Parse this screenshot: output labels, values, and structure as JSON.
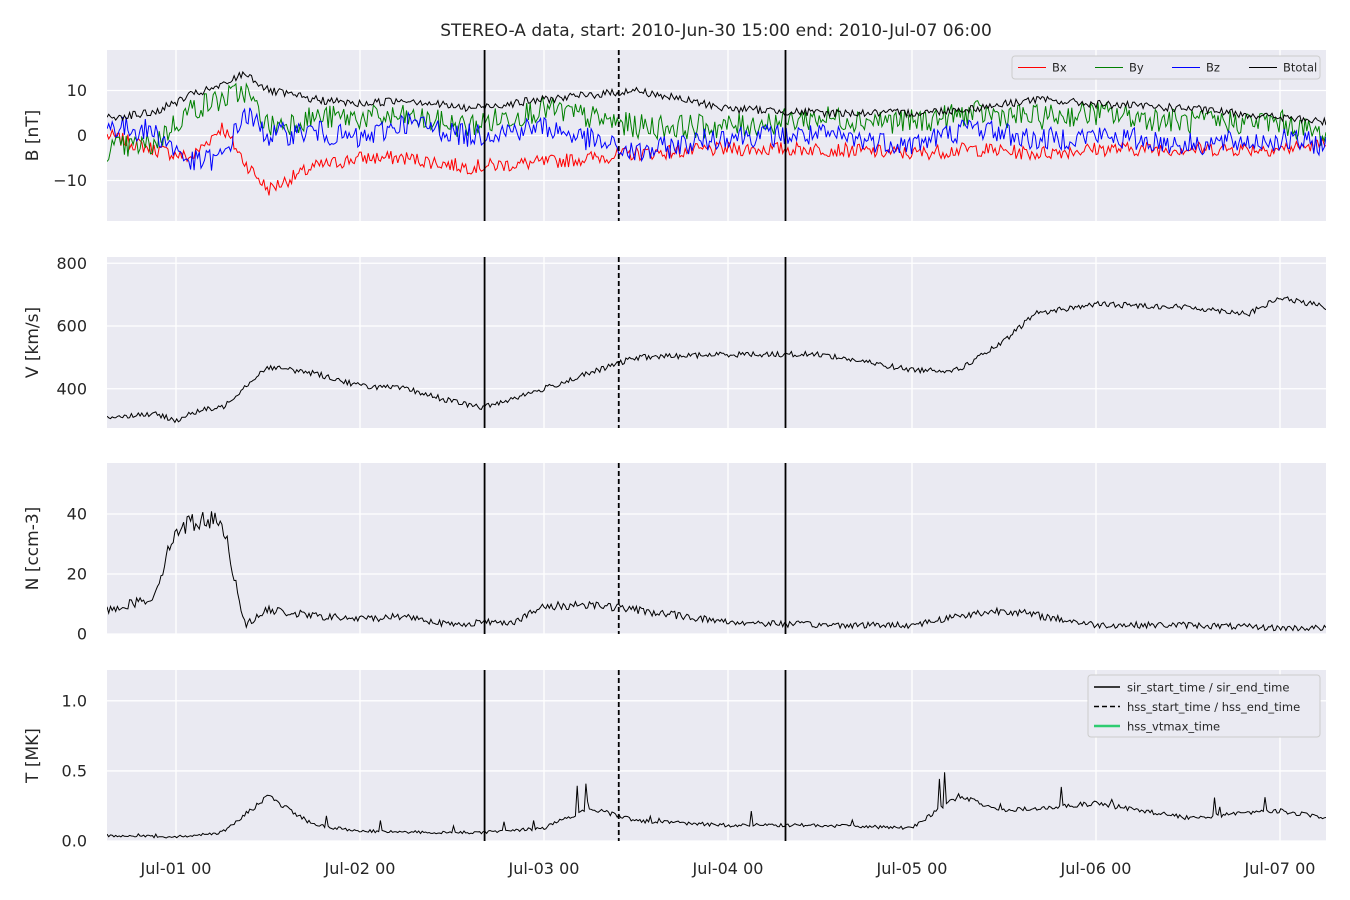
{
  "title": "STEREO-A data, start: 2010-Jun-30 15:00  end: 2010-Jul-07 06:00",
  "chart_data": [
    {
      "type": "line",
      "ylabel": "B [nT]",
      "xlim": [
        "2010-06-30 15:00",
        "2010-07-07 06:00"
      ],
      "ylim": [
        -19,
        19
      ],
      "yticks": [
        {
          "value": 10,
          "label": "10"
        },
        {
          "value": 0,
          "label": "0"
        },
        {
          "value": -10,
          "label": "−10"
        }
      ],
      "legend": {
        "placement": "top-right",
        "layout": "4 columns"
      },
      "grid": true,
      "series": [
        {
          "name": "Bx",
          "color": "#ff0000",
          "x": [
            "2010-06-30 15:00",
            "2010-06-30 21:00",
            "2010-07-01 02:00",
            "2010-07-01 06:00",
            "2010-07-01 09:00",
            "2010-07-01 12:00",
            "2010-07-01 18:00",
            "2010-07-02 00:00",
            "2010-07-02 06:00",
            "2010-07-02 14:00",
            "2010-07-03 00:00",
            "2010-07-03 12:00",
            "2010-07-04 00:00",
            "2010-07-04 12:00",
            "2010-07-05 00:00",
            "2010-07-05 08:00",
            "2010-07-05 16:00",
            "2010-07-06 00:00",
            "2010-07-06 12:00",
            "2010-07-07 00:00",
            "2010-07-07 06:00"
          ],
          "values": [
            0,
            -3,
            -5,
            2,
            -6,
            -12,
            -7,
            -5,
            -5,
            -7,
            -6,
            -4,
            -3,
            -3,
            -4,
            -3,
            -4,
            -3,
            -3,
            -3,
            -2
          ]
        },
        {
          "name": "By",
          "color": "#008000",
          "x": [
            "2010-06-30 15:00",
            "2010-06-30 21:00",
            "2010-07-01 02:00",
            "2010-07-01 06:00",
            "2010-07-01 09:00",
            "2010-07-01 12:00",
            "2010-07-01 18:00",
            "2010-07-02 00:00",
            "2010-07-02 06:00",
            "2010-07-02 14:00",
            "2010-07-03 00:00",
            "2010-07-03 12:00",
            "2010-07-04 00:00",
            "2010-07-04 12:00",
            "2010-07-05 00:00",
            "2010-07-05 08:00",
            "2010-07-05 16:00",
            "2010-07-06 00:00",
            "2010-07-06 12:00",
            "2010-07-07 00:00",
            "2010-07-07 06:00"
          ],
          "values": [
            -3,
            -2,
            6,
            8,
            10,
            2,
            4,
            4,
            4,
            2,
            6,
            2,
            2,
            4,
            3,
            5,
            4,
            5,
            3,
            3,
            0
          ]
        },
        {
          "name": "Bz",
          "color": "#0000ff",
          "x": [
            "2010-06-30 15:00",
            "2010-06-30 21:00",
            "2010-07-01 02:00",
            "2010-07-01 06:00",
            "2010-07-01 09:00",
            "2010-07-01 12:00",
            "2010-07-01 18:00",
            "2010-07-02 00:00",
            "2010-07-02 06:00",
            "2010-07-02 14:00",
            "2010-07-03 00:00",
            "2010-07-03 12:00",
            "2010-07-04 00:00",
            "2010-07-04 12:00",
            "2010-07-05 00:00",
            "2010-07-05 08:00",
            "2010-07-05 16:00",
            "2010-07-06 00:00",
            "2010-07-06 12:00",
            "2010-07-07 00:00",
            "2010-07-07 06:00"
          ],
          "values": [
            2,
            1,
            -6,
            -5,
            5,
            0,
            1,
            -1,
            3,
            0,
            2,
            -4,
            0,
            0,
            -2,
            2,
            -1,
            0,
            -2,
            -1,
            -2
          ]
        },
        {
          "name": "Btotal",
          "color": "#000000",
          "x": [
            "2010-06-30 15:00",
            "2010-06-30 21:00",
            "2010-07-01 02:00",
            "2010-07-01 06:00",
            "2010-07-01 09:00",
            "2010-07-01 12:00",
            "2010-07-01 18:00",
            "2010-07-02 00:00",
            "2010-07-02 06:00",
            "2010-07-02 14:00",
            "2010-07-03 00:00",
            "2010-07-03 12:00",
            "2010-07-04 00:00",
            "2010-07-04 12:00",
            "2010-07-05 00:00",
            "2010-07-05 08:00",
            "2010-07-05 16:00",
            "2010-07-06 00:00",
            "2010-07-06 12:00",
            "2010-07-07 00:00",
            "2010-07-07 06:00"
          ],
          "values": [
            4,
            5,
            9,
            11,
            14,
            10,
            8,
            7,
            8,
            6,
            8,
            10,
            6,
            5,
            5,
            6,
            8,
            7,
            6,
            4,
            3
          ]
        }
      ]
    },
    {
      "type": "line",
      "ylabel": "V [km/s]",
      "xlim": [
        "2010-06-30 15:00",
        "2010-07-07 06:00"
      ],
      "ylim": [
        275,
        820
      ],
      "yticks": [
        {
          "value": 800,
          "label": "800"
        },
        {
          "value": 600,
          "label": "600"
        },
        {
          "value": 400,
          "label": "400"
        }
      ],
      "grid": true,
      "series": [
        {
          "color": "#000000",
          "x": [
            "2010-06-30 15:00",
            "2010-06-30 21:00",
            "2010-07-01 00:00",
            "2010-07-01 03:00",
            "2010-07-01 06:00",
            "2010-07-01 10:00",
            "2010-07-01 12:00",
            "2010-07-01 18:00",
            "2010-07-02 00:00",
            "2010-07-02 06:00",
            "2010-07-02 12:00",
            "2010-07-02 16:00",
            "2010-07-02 20:00",
            "2010-07-03 00:00",
            "2010-07-03 06:00",
            "2010-07-03 12:00",
            "2010-07-04 00:00",
            "2010-07-04 12:00",
            "2010-07-05 00:00",
            "2010-07-05 06:00",
            "2010-07-05 12:00",
            "2010-07-05 16:00",
            "2010-07-06 00:00",
            "2010-07-06 12:00",
            "2010-07-06 20:00",
            "2010-07-07 00:00",
            "2010-07-07 06:00"
          ],
          "values": [
            310,
            320,
            300,
            330,
            340,
            430,
            470,
            450,
            410,
            400,
            360,
            340,
            370,
            400,
            450,
            500,
            510,
            510,
            460,
            460,
            550,
            640,
            670,
            660,
            640,
            690,
            660
          ]
        }
      ]
    },
    {
      "type": "line",
      "ylabel": "N [ccm-3]",
      "xlim": [
        "2010-06-30 15:00",
        "2010-07-07 06:00"
      ],
      "ylim": [
        0,
        57
      ],
      "yticks": [
        {
          "value": 40,
          "label": "40"
        },
        {
          "value": 20,
          "label": "20"
        },
        {
          "value": 0,
          "label": "0"
        }
      ],
      "grid": true,
      "series": [
        {
          "color": "#000000",
          "x": [
            "2010-06-30 15:00",
            "2010-06-30 21:00",
            "2010-07-01 00:00",
            "2010-07-01 03:00",
            "2010-07-01 06:00",
            "2010-07-01 09:00",
            "2010-07-01 12:00",
            "2010-07-01 18:00",
            "2010-07-02 00:00",
            "2010-07-02 06:00",
            "2010-07-02 12:00",
            "2010-07-02 16:00",
            "2010-07-02 20:00",
            "2010-07-03 00:00",
            "2010-07-03 06:00",
            "2010-07-03 12:00",
            "2010-07-04 00:00",
            "2010-07-04 12:00",
            "2010-07-05 00:00",
            "2010-07-05 06:00",
            "2010-07-05 12:00",
            "2010-07-06 00:00",
            "2010-07-06 12:00",
            "2010-07-07 00:00",
            "2010-07-07 06:00"
          ],
          "values": [
            8,
            12,
            35,
            38,
            38,
            3,
            8,
            6,
            5,
            6,
            3,
            4,
            4,
            9,
            10,
            8,
            4,
            3,
            3,
            6,
            8,
            3,
            3,
            2,
            2
          ]
        }
      ]
    },
    {
      "type": "line",
      "ylabel": "T [MK]",
      "xlim": [
        "2010-06-30 15:00",
        "2010-07-07 06:00"
      ],
      "ylim": [
        0,
        1.22
      ],
      "yticks": [
        {
          "value": 1.0,
          "label": "1.0"
        },
        {
          "value": 0.5,
          "label": "0.5"
        },
        {
          "value": 0.0,
          "label": "0.0"
        }
      ],
      "legend": {
        "placement": "top-right"
      },
      "grid": true,
      "series": [
        {
          "color": "#000000",
          "x": [
            "2010-06-30 15:00",
            "2010-07-01 00:00",
            "2010-07-01 06:00",
            "2010-07-01 12:00",
            "2010-07-01 18:00",
            "2010-07-02 00:00",
            "2010-07-02 12:00",
            "2010-07-02 16:00",
            "2010-07-03 00:00",
            "2010-07-03 06:00",
            "2010-07-03 12:00",
            "2010-07-04 00:00",
            "2010-07-04 12:00",
            "2010-07-05 00:00",
            "2010-07-05 06:00",
            "2010-07-05 12:00",
            "2010-07-06 00:00",
            "2010-07-06 12:00",
            "2010-07-07 00:00",
            "2010-07-07 06:00"
          ],
          "values": [
            0.03,
            0.02,
            0.05,
            0.3,
            0.1,
            0.06,
            0.05,
            0.05,
            0.08,
            0.22,
            0.13,
            0.1,
            0.1,
            0.08,
            0.3,
            0.2,
            0.25,
            0.15,
            0.2,
            0.15
          ]
        }
      ]
    }
  ],
  "xticks": [
    {
      "value": "2010-07-01 00:00",
      "label": "Jul-01 00"
    },
    {
      "value": "2010-07-02 00:00",
      "label": "Jul-02 00"
    },
    {
      "value": "2010-07-03 00:00",
      "label": "Jul-03 00"
    },
    {
      "value": "2010-07-04 00:00",
      "label": "Jul-04 00"
    },
    {
      "value": "2010-07-05 00:00",
      "label": "Jul-05 00"
    },
    {
      "value": "2010-07-06 00:00",
      "label": "Jul-06 00"
    },
    {
      "value": "2010-07-07 00:00",
      "label": "Jul-07 00"
    }
  ],
  "event_lines": [
    {
      "time": "2010-07-02 16:15",
      "style": "solid",
      "color": "#000000"
    },
    {
      "time": "2010-07-03 09:45",
      "style": "dashed",
      "color": "#000000"
    },
    {
      "time": "2010-07-04 07:30",
      "style": "solid",
      "color": "#000000"
    }
  ],
  "event_legend": [
    {
      "label": "sir_start_time / sir_end_time",
      "style": "solid",
      "color": "#000000"
    },
    {
      "label": "hss_start_time / hss_end_time",
      "style": "dashed",
      "color": "#000000"
    },
    {
      "label": "hss_vtmax_time",
      "style": "solid",
      "color": "#2ecc71"
    }
  ],
  "colors": {
    "axes_bg": "#eaeaf2",
    "grid": "#ffffff",
    "text": "#262626"
  }
}
